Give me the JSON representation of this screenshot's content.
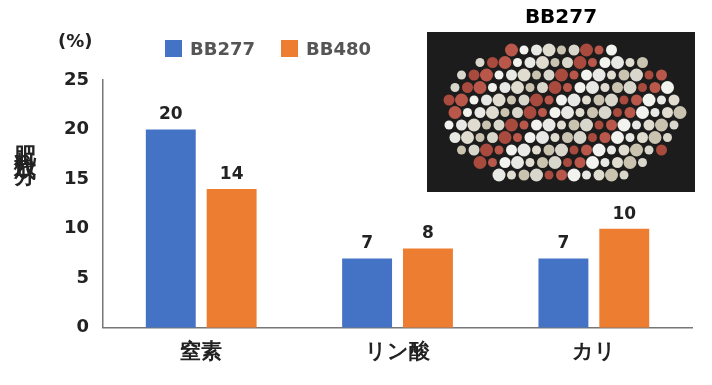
{
  "chart_data": {
    "type": "bar",
    "y_label": "肥料成分",
    "annotations": [
      "(%)",
      "BB277"
    ],
    "categories": [
      "窒素",
      "リン酸",
      "カリ"
    ],
    "series": [
      {
        "name": "BB277",
        "color": "#4472c4",
        "values": [
          20,
          7,
          7
        ]
      },
      {
        "name": "BB480",
        "color": "#ed7d31",
        "values": [
          14,
          8,
          10
        ]
      }
    ],
    "ylim": [
      0,
      25
    ],
    "yticks": [
      0,
      5,
      10,
      15,
      20,
      25
    ],
    "grid": false,
    "legend": "top",
    "data_labels": true
  }
}
